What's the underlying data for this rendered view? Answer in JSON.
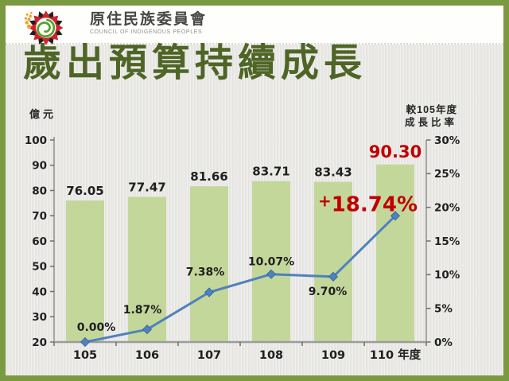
{
  "header": {
    "brand_zh": "原住民族委員會",
    "brand_en": "COUNCIL OF INDIGENOUS PEOPLES"
  },
  "title": "歲出預算持續成長",
  "chart_data": {
    "type": "bar",
    "subtype": "bar-line-combo",
    "title": "歲出預算持續成長",
    "categories": [
      "105",
      "106",
      "107",
      "108",
      "109",
      "110"
    ],
    "x_axis_unit": "年度",
    "series": [
      {
        "name": "歲出預算(億元)",
        "chart": "bar",
        "axis": "left",
        "color": "#c4d79b",
        "values": [
          76.05,
          77.47,
          81.66,
          83.71,
          83.43,
          90.3
        ],
        "labels": [
          "76.05",
          "77.47",
          "81.66",
          "83.71",
          "83.43",
          "90.30"
        ]
      },
      {
        "name": "較105年度成長比率",
        "chart": "line",
        "axis": "right",
        "color": "#4f81bd",
        "values": [
          0.0,
          1.87,
          7.38,
          10.07,
          9.7,
          18.74
        ],
        "labels": [
          "0.00%",
          "1.87%",
          "7.38%",
          "10.07%",
          "9.70%",
          "+18.74%"
        ]
      }
    ],
    "left_axis": {
      "label": "億元",
      "min": 20,
      "max": 100,
      "ticks": [
        "20",
        "30",
        "40",
        "50",
        "60",
        "70",
        "80",
        "90",
        "100"
      ]
    },
    "right_axis": {
      "label_line1": "較105年度",
      "label_line2": "成長比率",
      "min": 0,
      "max": 30,
      "ticks": [
        "0%",
        "5%",
        "10%",
        "15%",
        "20%",
        "25%",
        "30%"
      ]
    },
    "highlight_color": "#c00000",
    "label_color": "#1f1f1f",
    "grid": false,
    "legend": "none"
  }
}
